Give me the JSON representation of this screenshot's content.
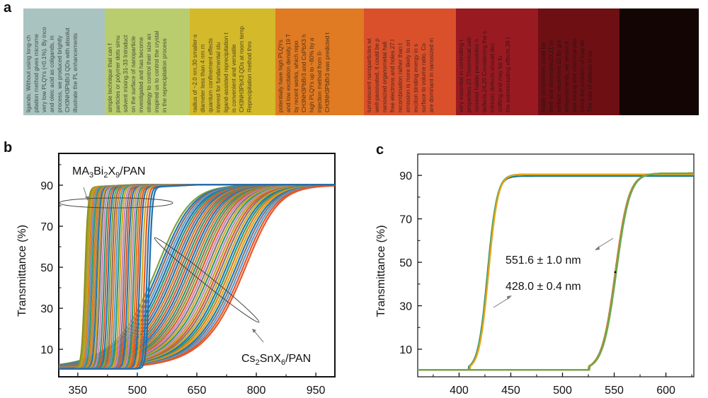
{
  "panels": {
    "a": {
      "letter": "a"
    },
    "b": {
      "letter": "b"
    },
    "c": {
      "letter": "c"
    }
  },
  "photo": {
    "description": "Photograph of printed text viewed through a series of colored perovskite/polymer films",
    "strips": [
      {
        "color": "#a9c4c0",
        "text": [
          "ligands. Without using long-ch",
          "pitation method gives microme",
          "very low PLQYs (<0.1%). By inco",
          "and oleic acid as coligands, in",
          "process, we produced brightly",
          "CH3NH3PbBr3 QDs with absolut",
          "illustrate the PL enhancements"
        ]
      },
      {
        "color": "#b9cd6f",
        "text": [
          "simple technique that can f",
          "particles or polymer dots simu",
          "solvent mixing.31-33 Introduct",
          "on the surface of nanoparticle",
          "investigated and has become",
          "strategy to control their size an",
          "inspired us to control the crystal",
          "in the reprecipitation process"
        ]
      },
      {
        "color": "#d4b92a",
        "text": [
          "radius of ~2.0 nm,30 smaller-s",
          "diameter less than 4 nm m",
          "quantum confinement effects",
          "interest for fundamental stu",
          "ligand-assisted reprecipitation t",
          "is convenient and versatile",
          "CH3NH3PbX3 QDs at room temp",
          "Reprecipitation method thro"
        ]
      },
      {
        "color": "#e07a23",
        "text": [
          "potentially have high PLQYs",
          "and low excitation density.19 T",
          "by recent works, which repo",
          "CH3NH3PbBr3 and CsPbX3 h",
          "high PLQYs up to ~80% by a",
          "injection method from II-",
          "CH3NH3PbBr3 was predicted t"
        ]
      },
      {
        "color": "#d9502b",
        "text": [
          "luminescent nanoparticles wi",
          "well-passivated, it could be p",
          "nanosized organometal hali",
          "free electrons and holes.27 I",
          "recombination rather than t",
          "emission is more likely to ori",
          "exciton binding energy in s",
          "surface to volume ratio. Co",
          "are dominant in nanosized m"
        ]
      },
      {
        "color": "#9a1a22",
        "text": [
          "very essential in controlling t",
          "properties.23 Theoretical calc",
          "nometal halide perovskites h",
          "defects.24,25 Considering the s",
          "intrinsic defects should dec",
          "shifting and may be fu",
          "the autoexcluding effects.26 I"
        ]
      },
      {
        "color": "#6e0f14",
        "text": [
          "halide perovskites could be",
          "their size dimension20,21 or",
          "surface vacancies.22 By gui",
          "enhancements, we herein d",
          "size tuning and chemical pas",
          "come the problem of trap de",
          "The role of defects in se"
        ]
      },
      {
        "color": "#120503",
        "text": []
      }
    ]
  },
  "chart_data": [
    {
      "id": "b",
      "type": "line",
      "title": "",
      "xlabel": "",
      "ylabel": "Transmittance (%)",
      "xlim": [
        302,
        998
      ],
      "ylim": [
        -3.4,
        105.5
      ],
      "xticks": [
        350,
        500,
        650,
        800,
        950
      ],
      "xminor": [
        425,
        575,
        725,
        875
      ],
      "yticks": [
        10,
        30,
        50,
        70,
        90
      ],
      "yminor": [
        20,
        40,
        60,
        80,
        100
      ],
      "grid": false,
      "legend": "none",
      "annotations": [
        {
          "text_parts": [
            [
              "MA",
              ""
            ],
            [
              "3",
              "sub"
            ],
            [
              "Bi",
              ""
            ],
            [
              "2",
              "sub"
            ],
            [
              "X",
              ""
            ],
            [
              "9",
              "sub"
            ],
            [
              "/PAN",
              ""
            ]
          ],
          "label": "MA3Bi2X9/PAN",
          "target": "steep absorption-edge curves",
          "ellipse_center": [
            414,
            80
          ],
          "arrow_to": [
            385,
            83
          ]
        },
        {
          "text_parts": [
            [
              "Cs",
              ""
            ],
            [
              "2",
              "sub"
            ],
            [
              "SnX",
              ""
            ],
            [
              "6",
              "sub"
            ],
            [
              "/PAN",
              ""
            ]
          ],
          "label": "Cs2SnX6/PAN",
          "target": "broad absorption-edge curves",
          "ellipse_center": [
            675,
            47
          ],
          "arrow_to": [
            765,
            20
          ]
        }
      ],
      "series_groups": [
        {
          "name": "MA3Bi2X9/PAN",
          "shape": "steep-sigmoid",
          "plateau": 89,
          "baseline": 0.5,
          "width_nm": 4,
          "edges_nm": [
            368,
            371,
            374,
            378,
            382,
            386,
            390,
            394,
            398,
            402,
            406,
            411,
            416,
            421,
            426,
            431,
            436,
            441,
            446,
            451,
            456,
            461,
            466,
            471,
            476,
            481,
            486,
            491,
            496,
            501,
            506,
            512,
            518,
            524,
            530
          ],
          "colors": [
            "#8c8c1e",
            "#9aa02a",
            "#b5a326",
            "#e07b1c",
            "#6f8fbf",
            "#2e9b6e",
            "#e07b1c",
            "#b48a50",
            "#1f77b4",
            "#d9a61c",
            "#7a7a7a",
            "#c586c0",
            "#2e9b6e",
            "#e3582a",
            "#1f77b4",
            "#7ea33d",
            "#9a6b5a",
            "#e07b1c",
            "#5a9bd4",
            "#2e9b6e",
            "#d9a61c",
            "#c586c0",
            "#7a7a7a",
            "#e3582a",
            "#1f77b4",
            "#b5a326",
            "#c586c0",
            "#2e9b6e",
            "#e07b1c",
            "#e3582a",
            "#1f77b4",
            "#d9a61c",
            "#e3582a",
            "#1f77b4",
            "#1f6fb0"
          ]
        },
        {
          "name": "Cs2SnX6/PAN",
          "shape": "broad-sigmoid",
          "plateau": 90,
          "baseline": 0.8,
          "width_nm": 38,
          "edges_nm": [
            575,
            582,
            588,
            594,
            600,
            606,
            612,
            618,
            624,
            630,
            636,
            642,
            648,
            654,
            660,
            666,
            672,
            678,
            684,
            690,
            696,
            702,
            708,
            714,
            720,
            726,
            732,
            738,
            744,
            750,
            756,
            762,
            768,
            774,
            780,
            786,
            792,
            798
          ],
          "colors": [
            "#7ea33d",
            "#1f77b4",
            "#9a6b5a",
            "#5a9bd4",
            "#1f6fb0",
            "#2e9b6e",
            "#e3582a",
            "#7a7a7a",
            "#1f77b4",
            "#e07b1c",
            "#9a6b5a",
            "#2e9b6e",
            "#e3582a",
            "#1f77b4",
            "#7a7a7a",
            "#e07b1c",
            "#2e9b6e",
            "#9a6b5a",
            "#7ea33d",
            "#e3582a",
            "#c586c0",
            "#7a7a7a",
            "#d9a61c",
            "#2e9b6e",
            "#c586c0",
            "#b5a326",
            "#e3582a",
            "#7a7a7a",
            "#d9a61c",
            "#1f77b4",
            "#2e9b6e",
            "#e07b1c",
            "#d9a61c",
            "#1f77b4",
            "#7a7a7a",
            "#5a9bd4",
            "#e3582a",
            "#e3582a"
          ]
        }
      ]
    },
    {
      "id": "c",
      "type": "line",
      "title": "",
      "xlabel": "",
      "ylabel": "Transmittance (%)",
      "xlim": [
        360,
        627
      ],
      "ylim": [
        -2.7,
        99.8
      ],
      "xticks": [
        400,
        450,
        500,
        550,
        600
      ],
      "xminor": [
        375,
        425,
        475,
        525,
        575,
        625
      ],
      "yticks": [
        10,
        30,
        50,
        70,
        90
      ],
      "yminor": [
        20,
        40,
        60,
        80
      ],
      "grid": false,
      "legend": "none",
      "annotations": [
        {
          "label": "551.6 ± 1.0 nm",
          "value_nm": 551.6,
          "error_nm": 1.0,
          "arrow_from": [
            551,
            60
          ],
          "arrow_to": [
            532,
            52
          ]
        },
        {
          "label": "428.0 ± 0.4 nm",
          "value_nm": 428.0,
          "error_nm": 0.4,
          "arrow_from": [
            455,
            38
          ],
          "arrow_to": [
            436,
            28
          ]
        }
      ],
      "series_groups": [
        {
          "name": "edge ~428 nm (overlaid repeats)",
          "edge_nm": 428.0,
          "plateau": 90.5,
          "baseline": 0.5,
          "width_nm": 4.5,
          "colors": [
            "#1f7a8c",
            "#2e9b6e",
            "#6aa84f",
            "#e8a317"
          ]
        },
        {
          "name": "edge ~551.6 nm (overlaid repeats)",
          "edge_nm": 551.6,
          "plateau": 91,
          "baseline": 0.5,
          "width_nm": 6.5,
          "colors": [
            "#c0504d",
            "#e8a317",
            "#7a9a3a",
            "#6aa84f"
          ]
        }
      ]
    }
  ]
}
